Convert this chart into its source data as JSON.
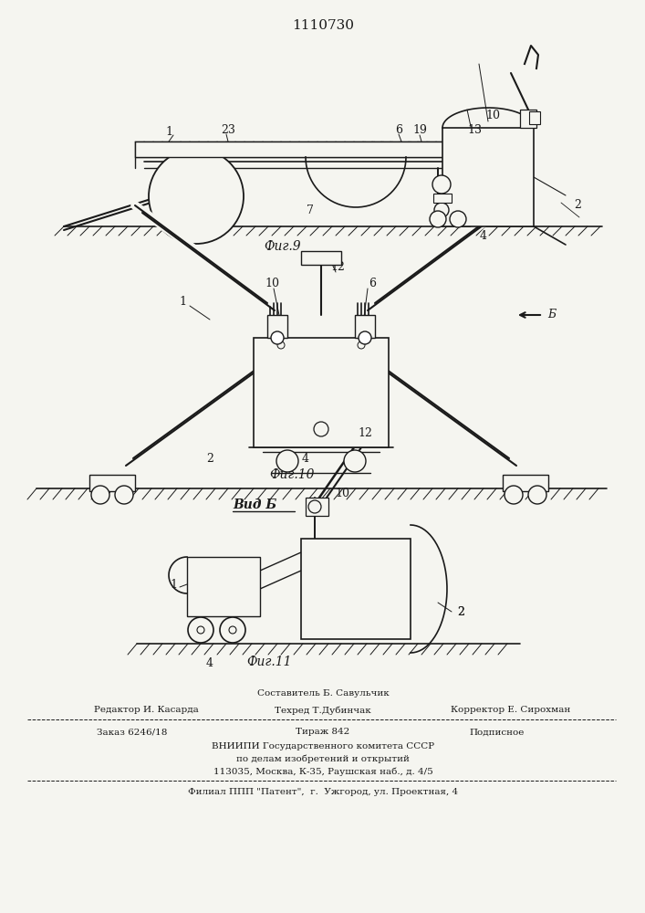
{
  "patent_number": "1110730",
  "fig9_label": "Фиг.9",
  "fig10_label": "Фиг.10",
  "fig11_label": "Фиг.11",
  "vid_b_label": "Вид Б",
  "b_label": "Б",
  "footer_line1": "Составитель Б. Савульчик",
  "footer_line2_l": "Редактор И. Касарда",
  "footer_line2_m": "Техред Т.Дубинчак",
  "footer_line2_r": "Корректор Е. Сирохман",
  "footer_line3_l": "Заказ 6246/18",
  "footer_line3_m": "Тираж 842",
  "footer_line3_r": "Подписное",
  "footer_line4": "ВНИИПИ Государственного комитета СССР",
  "footer_line5": "по делам изобретений и открытий",
  "footer_line6": "113035, Москва, К-35, Раушская наб., д. 4/5",
  "footer_line7": "Филиал ППП \"Патент\",  г.  Ужгород, ул. Проектная, 4",
  "bg_color": "#f5f5f0",
  "line_color": "#1a1a1a",
  "text_color": "#1a1a1a"
}
